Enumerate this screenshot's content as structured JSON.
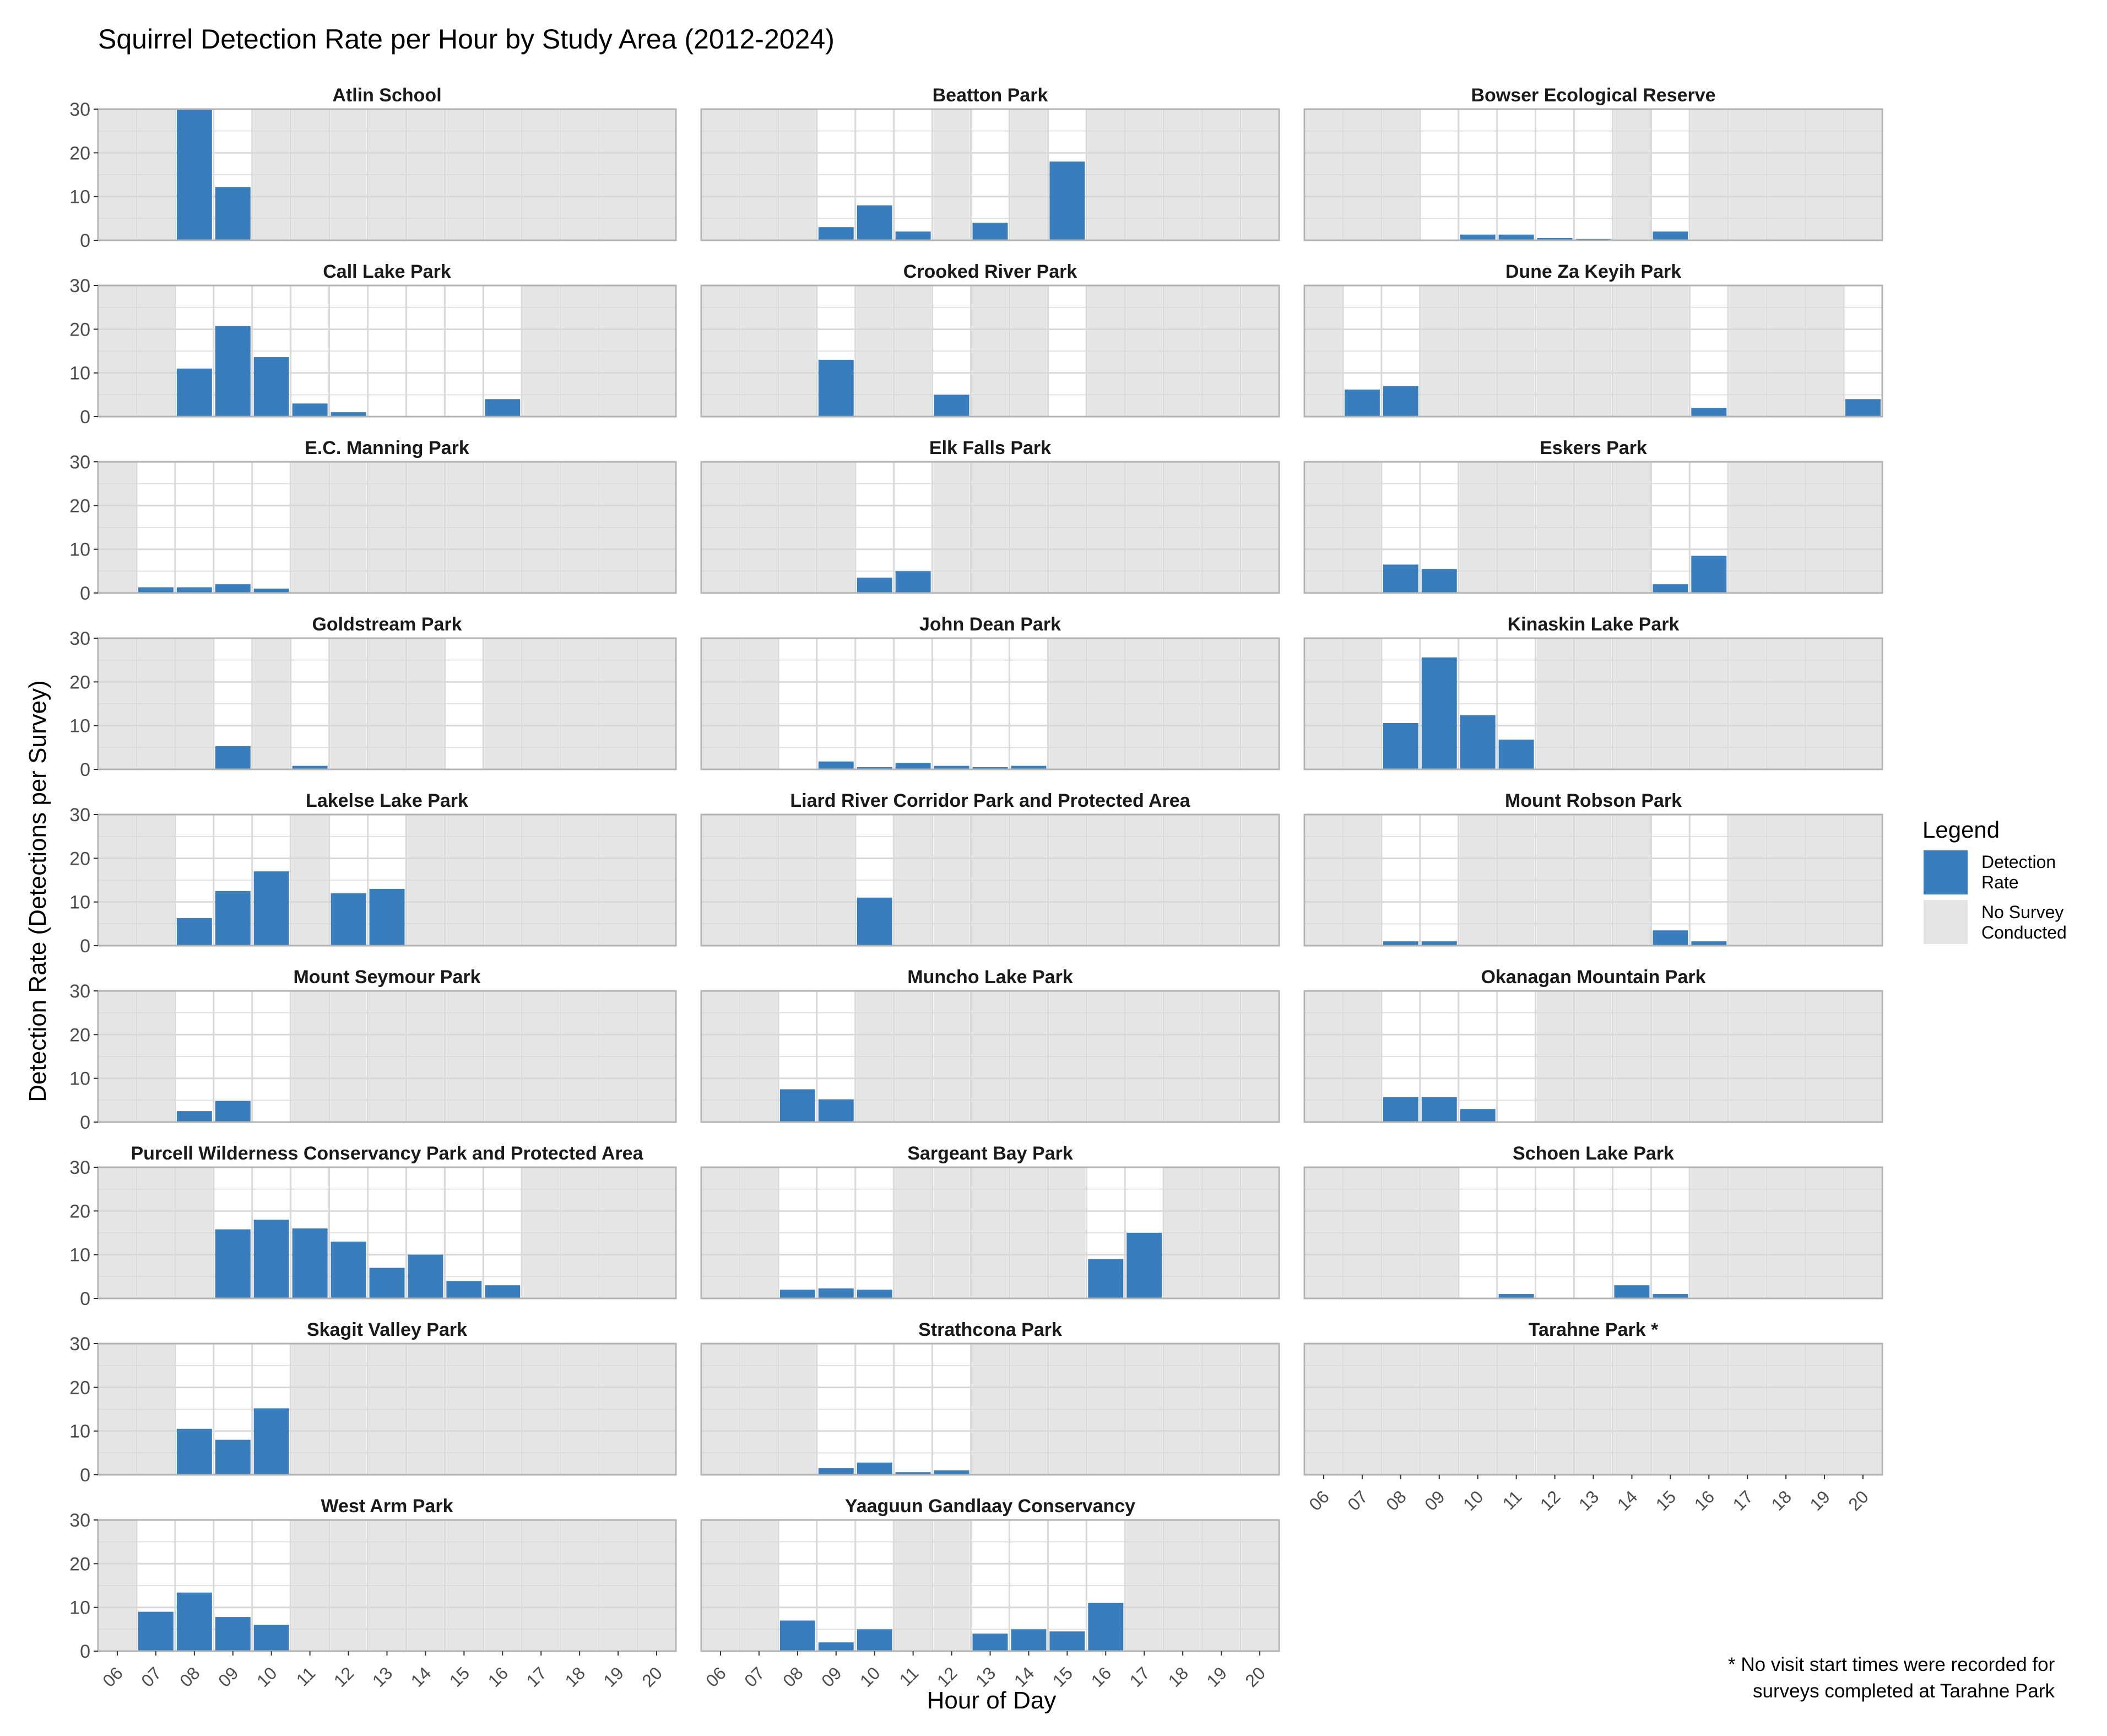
{
  "chart_data": {
    "type": "bar",
    "title": "Squirrel Detection Rate per Hour by Study Area (2012-2024)",
    "xlabel": "Hour of Day",
    "ylabel": "Detection Rate (Detections per Survey)",
    "ylim": [
      0,
      30
    ],
    "yticks": [
      "0",
      "10",
      "20",
      "30"
    ],
    "hours": [
      "06",
      "07",
      "08",
      "09",
      "10",
      "11",
      "12",
      "13",
      "14",
      "15",
      "16",
      "17",
      "18",
      "19",
      "20"
    ],
    "grid": true,
    "legend": {
      "title": "Legend",
      "position": "right",
      "items": [
        {
          "label": [
            "Detection",
            "Rate"
          ],
          "color": "#3A7DBC"
        },
        {
          "label": [
            "No Survey",
            "Conducted"
          ],
          "color": "#E5E5E5"
        }
      ]
    },
    "colors": {
      "bar": "#3A7DBC",
      "no_survey": "#E5E5E5",
      "grid": "#D9D9D9",
      "frame": "#B3B3B3"
    },
    "note": [
      "* No visit start times were recorded for",
      "surveys completed at Tarahne Park"
    ],
    "panels": [
      {
        "name": "Atlin School",
        "values": [
          null,
          null,
          30,
          12.2,
          null,
          null,
          null,
          null,
          null,
          null,
          null,
          null,
          null,
          null,
          null
        ]
      },
      {
        "name": "Beatton Park",
        "values": [
          null,
          null,
          null,
          3,
          8,
          2,
          null,
          4,
          null,
          18,
          null,
          null,
          null,
          null,
          null
        ]
      },
      {
        "name": "Bowser Ecological Reserve",
        "values": [
          null,
          null,
          null,
          0,
          1.3,
          1.3,
          0.5,
          0.3,
          null,
          2,
          null,
          null,
          null,
          null,
          null
        ]
      },
      {
        "name": "Call Lake Park",
        "values": [
          null,
          null,
          11,
          20.7,
          13.6,
          3,
          1,
          0,
          0,
          0,
          4,
          null,
          null,
          null,
          null
        ]
      },
      {
        "name": "Crooked River Park",
        "values": [
          null,
          null,
          null,
          13,
          null,
          null,
          5,
          null,
          null,
          0,
          null,
          null,
          null,
          null,
          null
        ]
      },
      {
        "name": "Dune Za Keyih Park",
        "values": [
          null,
          6.2,
          7,
          null,
          null,
          null,
          null,
          null,
          null,
          null,
          2,
          null,
          null,
          null,
          4
        ]
      },
      {
        "name": "E.C. Manning Park",
        "values": [
          null,
          1.3,
          1.3,
          2,
          1,
          null,
          null,
          null,
          null,
          null,
          null,
          null,
          null,
          null,
          null
        ]
      },
      {
        "name": "Elk Falls Park",
        "values": [
          null,
          null,
          null,
          null,
          3.5,
          5,
          null,
          null,
          null,
          null,
          null,
          null,
          null,
          null,
          null
        ]
      },
      {
        "name": "Eskers Park",
        "values": [
          null,
          null,
          6.5,
          5.5,
          null,
          null,
          null,
          null,
          null,
          2,
          8.5,
          null,
          null,
          null,
          null
        ]
      },
      {
        "name": "Goldstream Park",
        "values": [
          null,
          null,
          null,
          5.3,
          null,
          0.8,
          null,
          null,
          null,
          0,
          null,
          null,
          null,
          null,
          null
        ]
      },
      {
        "name": "John Dean Park",
        "values": [
          null,
          null,
          0,
          1.8,
          0.5,
          1.5,
          0.8,
          0.5,
          0.8,
          null,
          null,
          null,
          null,
          null,
          null
        ]
      },
      {
        "name": "Kinaskin Lake Park",
        "values": [
          null,
          null,
          10.6,
          25.6,
          12.4,
          6.8,
          null,
          null,
          null,
          null,
          null,
          null,
          null,
          null,
          null
        ]
      },
      {
        "name": "Lakelse Lake Park",
        "values": [
          null,
          null,
          6.3,
          12.5,
          17,
          null,
          12,
          13,
          null,
          null,
          null,
          null,
          null,
          null,
          null
        ]
      },
      {
        "name": "Liard River Corridor Park and Protected Area",
        "values": [
          null,
          null,
          null,
          null,
          11,
          null,
          null,
          null,
          null,
          null,
          null,
          null,
          null,
          null,
          null
        ]
      },
      {
        "name": "Mount Robson Park",
        "values": [
          null,
          null,
          1,
          1,
          null,
          null,
          null,
          null,
          null,
          3.5,
          1,
          null,
          null,
          null,
          null
        ]
      },
      {
        "name": "Mount Seymour Park",
        "values": [
          null,
          null,
          2.5,
          4.8,
          0,
          null,
          null,
          null,
          null,
          null,
          null,
          null,
          null,
          null,
          null
        ]
      },
      {
        "name": "Muncho Lake Park",
        "values": [
          null,
          null,
          7.5,
          5.2,
          null,
          null,
          null,
          null,
          null,
          null,
          null,
          null,
          null,
          null,
          null
        ]
      },
      {
        "name": "Okanagan Mountain Park",
        "values": [
          null,
          null,
          5.7,
          5.7,
          3,
          0,
          null,
          null,
          null,
          null,
          null,
          null,
          null,
          null,
          null
        ]
      },
      {
        "name": "Purcell Wilderness Conservancy Park and Protected Area",
        "values": [
          null,
          null,
          null,
          15.8,
          18,
          16,
          13,
          7,
          10,
          4,
          3,
          null,
          null,
          null,
          null
        ]
      },
      {
        "name": "Sargeant Bay Park",
        "values": [
          null,
          null,
          2,
          2.3,
          2,
          null,
          null,
          null,
          null,
          null,
          9,
          15,
          null,
          null,
          null
        ]
      },
      {
        "name": "Schoen Lake Park",
        "values": [
          null,
          null,
          null,
          null,
          0,
          1,
          0,
          0,
          3,
          1,
          null,
          null,
          null,
          null,
          null
        ]
      },
      {
        "name": "Skagit Valley Park",
        "values": [
          null,
          null,
          10.5,
          8,
          15.2,
          null,
          null,
          null,
          null,
          null,
          null,
          null,
          null,
          null,
          null
        ]
      },
      {
        "name": "Strathcona Park",
        "values": [
          null,
          null,
          null,
          1.5,
          2.8,
          0.6,
          1,
          null,
          null,
          null,
          null,
          null,
          null,
          null,
          null
        ]
      },
      {
        "name": "Tarahne Park *",
        "values": [
          null,
          null,
          null,
          null,
          null,
          null,
          null,
          null,
          null,
          null,
          null,
          null,
          null,
          null,
          null
        ]
      },
      {
        "name": "West Arm Park",
        "values": [
          null,
          9,
          13.4,
          7.8,
          6,
          null,
          null,
          null,
          null,
          null,
          null,
          null,
          null,
          null,
          null
        ]
      },
      {
        "name": "Yaaguun Gandlaay Conservancy",
        "values": [
          null,
          null,
          7,
          2,
          5,
          null,
          null,
          4,
          5,
          4.5,
          11,
          null,
          null,
          null,
          null
        ]
      }
    ]
  }
}
